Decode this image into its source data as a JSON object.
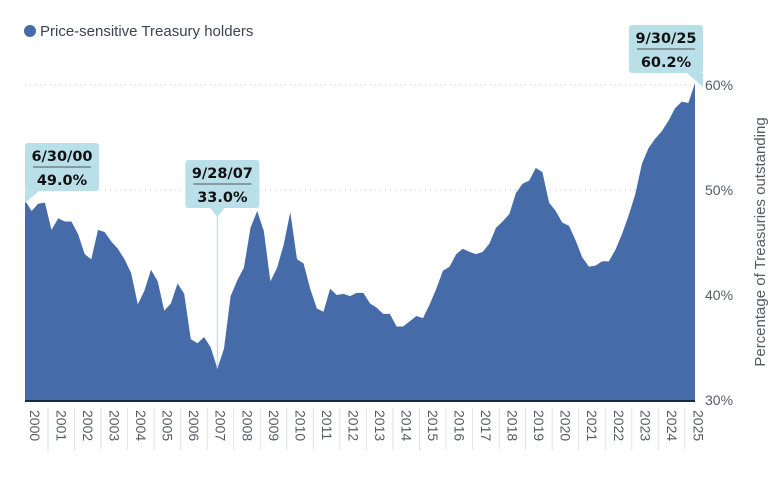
{
  "legend": {
    "label": "Price-sensitive Treasury holders",
    "color": "#456ca8"
  },
  "chart_data": {
    "type": "area",
    "series": [
      {
        "name": "Price-sensitive Treasury holders",
        "color": "#456ca8",
        "start": "2000-06-30",
        "frequency": "quarterly",
        "values": [
          49.0,
          48.0,
          48.7,
          48.8,
          46.2,
          47.3,
          47.0,
          47.0,
          45.8,
          43.9,
          43.4,
          46.2,
          46.0,
          45.1,
          44.4,
          43.4,
          42.1,
          39.1,
          40.4,
          42.4,
          41.3,
          38.5,
          39.2,
          41.1,
          40.1,
          35.8,
          35.4,
          36.0,
          35.0,
          33.0,
          34.9,
          39.9,
          41.4,
          42.6,
          46.4,
          48.0,
          46.1,
          41.3,
          42.6,
          44.8,
          47.9,
          43.4,
          43.0,
          40.6,
          38.7,
          38.4,
          40.6,
          40.0,
          40.1,
          39.9,
          40.2,
          40.2,
          39.2,
          38.8,
          38.2,
          38.2,
          37.0,
          37.0,
          37.5,
          38.0,
          37.8,
          39.1,
          40.6,
          42.3,
          42.7,
          43.9,
          44.4,
          44.1,
          43.9,
          44.1,
          44.9,
          46.4,
          47.0,
          47.7,
          49.7,
          50.6,
          50.9,
          52.1,
          51.7,
          48.8,
          48.0,
          46.9,
          46.6,
          45.2,
          43.6,
          42.7,
          42.8,
          43.2,
          43.2,
          44.3,
          45.8,
          47.6,
          49.6,
          52.5,
          54.0,
          54.9,
          55.6,
          56.6,
          57.8,
          58.4,
          58.3,
          60.2
        ]
      }
    ],
    "x_tick_labels": [
      "2000",
      "2001",
      "2002",
      "2003",
      "2004",
      "2005",
      "2006",
      "2007",
      "2008",
      "2009",
      "2010",
      "2011",
      "2012",
      "2013",
      "2014",
      "2015",
      "2016",
      "2017",
      "2018",
      "2019",
      "2020",
      "2021",
      "2022",
      "2023",
      "2024",
      "2025"
    ],
    "y_tick_labels": [
      "30%",
      "40%",
      "50%",
      "60%"
    ],
    "y_ticks": [
      30,
      40,
      50,
      60
    ],
    "ylim": [
      30,
      60
    ],
    "xlim": [
      "2000-06-30",
      "2025-09-30"
    ],
    "ylabel": "Percentage of Treasuries outstanding",
    "xlabel": "",
    "y_axis_position": "right",
    "grid": "dotted horizontal",
    "legend_position": "top-left",
    "annotations": [
      {
        "date": "6/30/00",
        "value": "49.0%",
        "index": 0
      },
      {
        "date": "9/28/07",
        "value": "33.0%",
        "index": 29
      },
      {
        "date": "9/30/25",
        "value": "60.2%",
        "index": 101
      }
    ],
    "annotation_color": "#b9dfe8"
  }
}
